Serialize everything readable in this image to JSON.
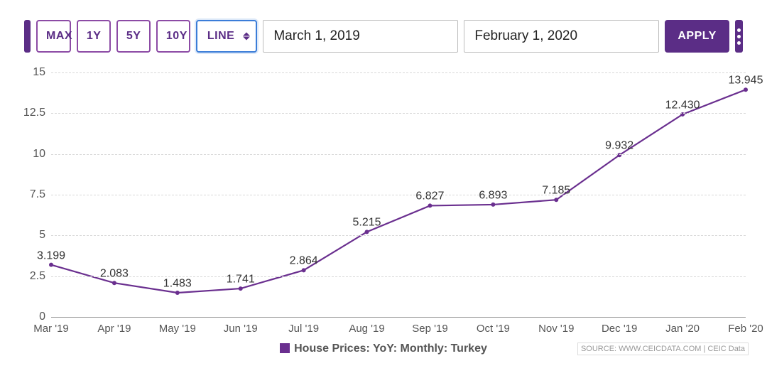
{
  "colors": {
    "accent": "#5b2d86",
    "accent_fill": "#5b2d86",
    "toolbar_btn_border": "#8c4ba5",
    "select_border": "#3b7dd8",
    "apply_bg": "#5b2d86",
    "menu_bg": "#5b2d86",
    "solid_small_bg": "#5b2d86"
  },
  "toolbar": {
    "range_buttons": [
      "MAX",
      "1Y",
      "5Y",
      "10Y"
    ],
    "chart_type_selected": "LINE",
    "date_from": "March 1, 2019",
    "date_to": "February 1, 2020",
    "apply_label": "APPLY"
  },
  "chart": {
    "type": "line",
    "title": "",
    "legend_label": "House Prices: YoY: Monthly: Turkey",
    "source_note": "SOURCE: WWW.CEICDATA.COM | CEIC Data",
    "series_color": "#6a2f8f",
    "line_width": 2.2,
    "marker_radius": 3,
    "background_color": "#ffffff",
    "grid_color": "#d8d8d8",
    "axis_color": "#9a9a9a",
    "label_fontsize": 16,
    "xlim": [
      0,
      11
    ],
    "ylim": [
      0,
      15
    ],
    "yticks": [
      0,
      2.5,
      5,
      7.5,
      10,
      12.5,
      15
    ],
    "ytick_labels": [
      "0",
      "2.5",
      "5",
      "7.5",
      "10",
      "12.5",
      "15"
    ],
    "categories": [
      "Mar '19",
      "Apr '19",
      "May '19",
      "Jun '19",
      "Jul '19",
      "Aug '19",
      "Sep '19",
      "Oct '19",
      "Nov '19",
      "Dec '19",
      "Jan '20",
      "Feb '20"
    ],
    "values": [
      3.199,
      2.083,
      1.483,
      1.741,
      2.864,
      5.215,
      6.827,
      6.893,
      7.185,
      9.932,
      12.43,
      13.945
    ],
    "value_labels": [
      "3.199",
      "2.083",
      "1.483",
      "1.741",
      "2.864",
      "5.215",
      "6.827",
      "6.893",
      "7.185",
      "9.932",
      "12.430",
      "13.945"
    ]
  }
}
